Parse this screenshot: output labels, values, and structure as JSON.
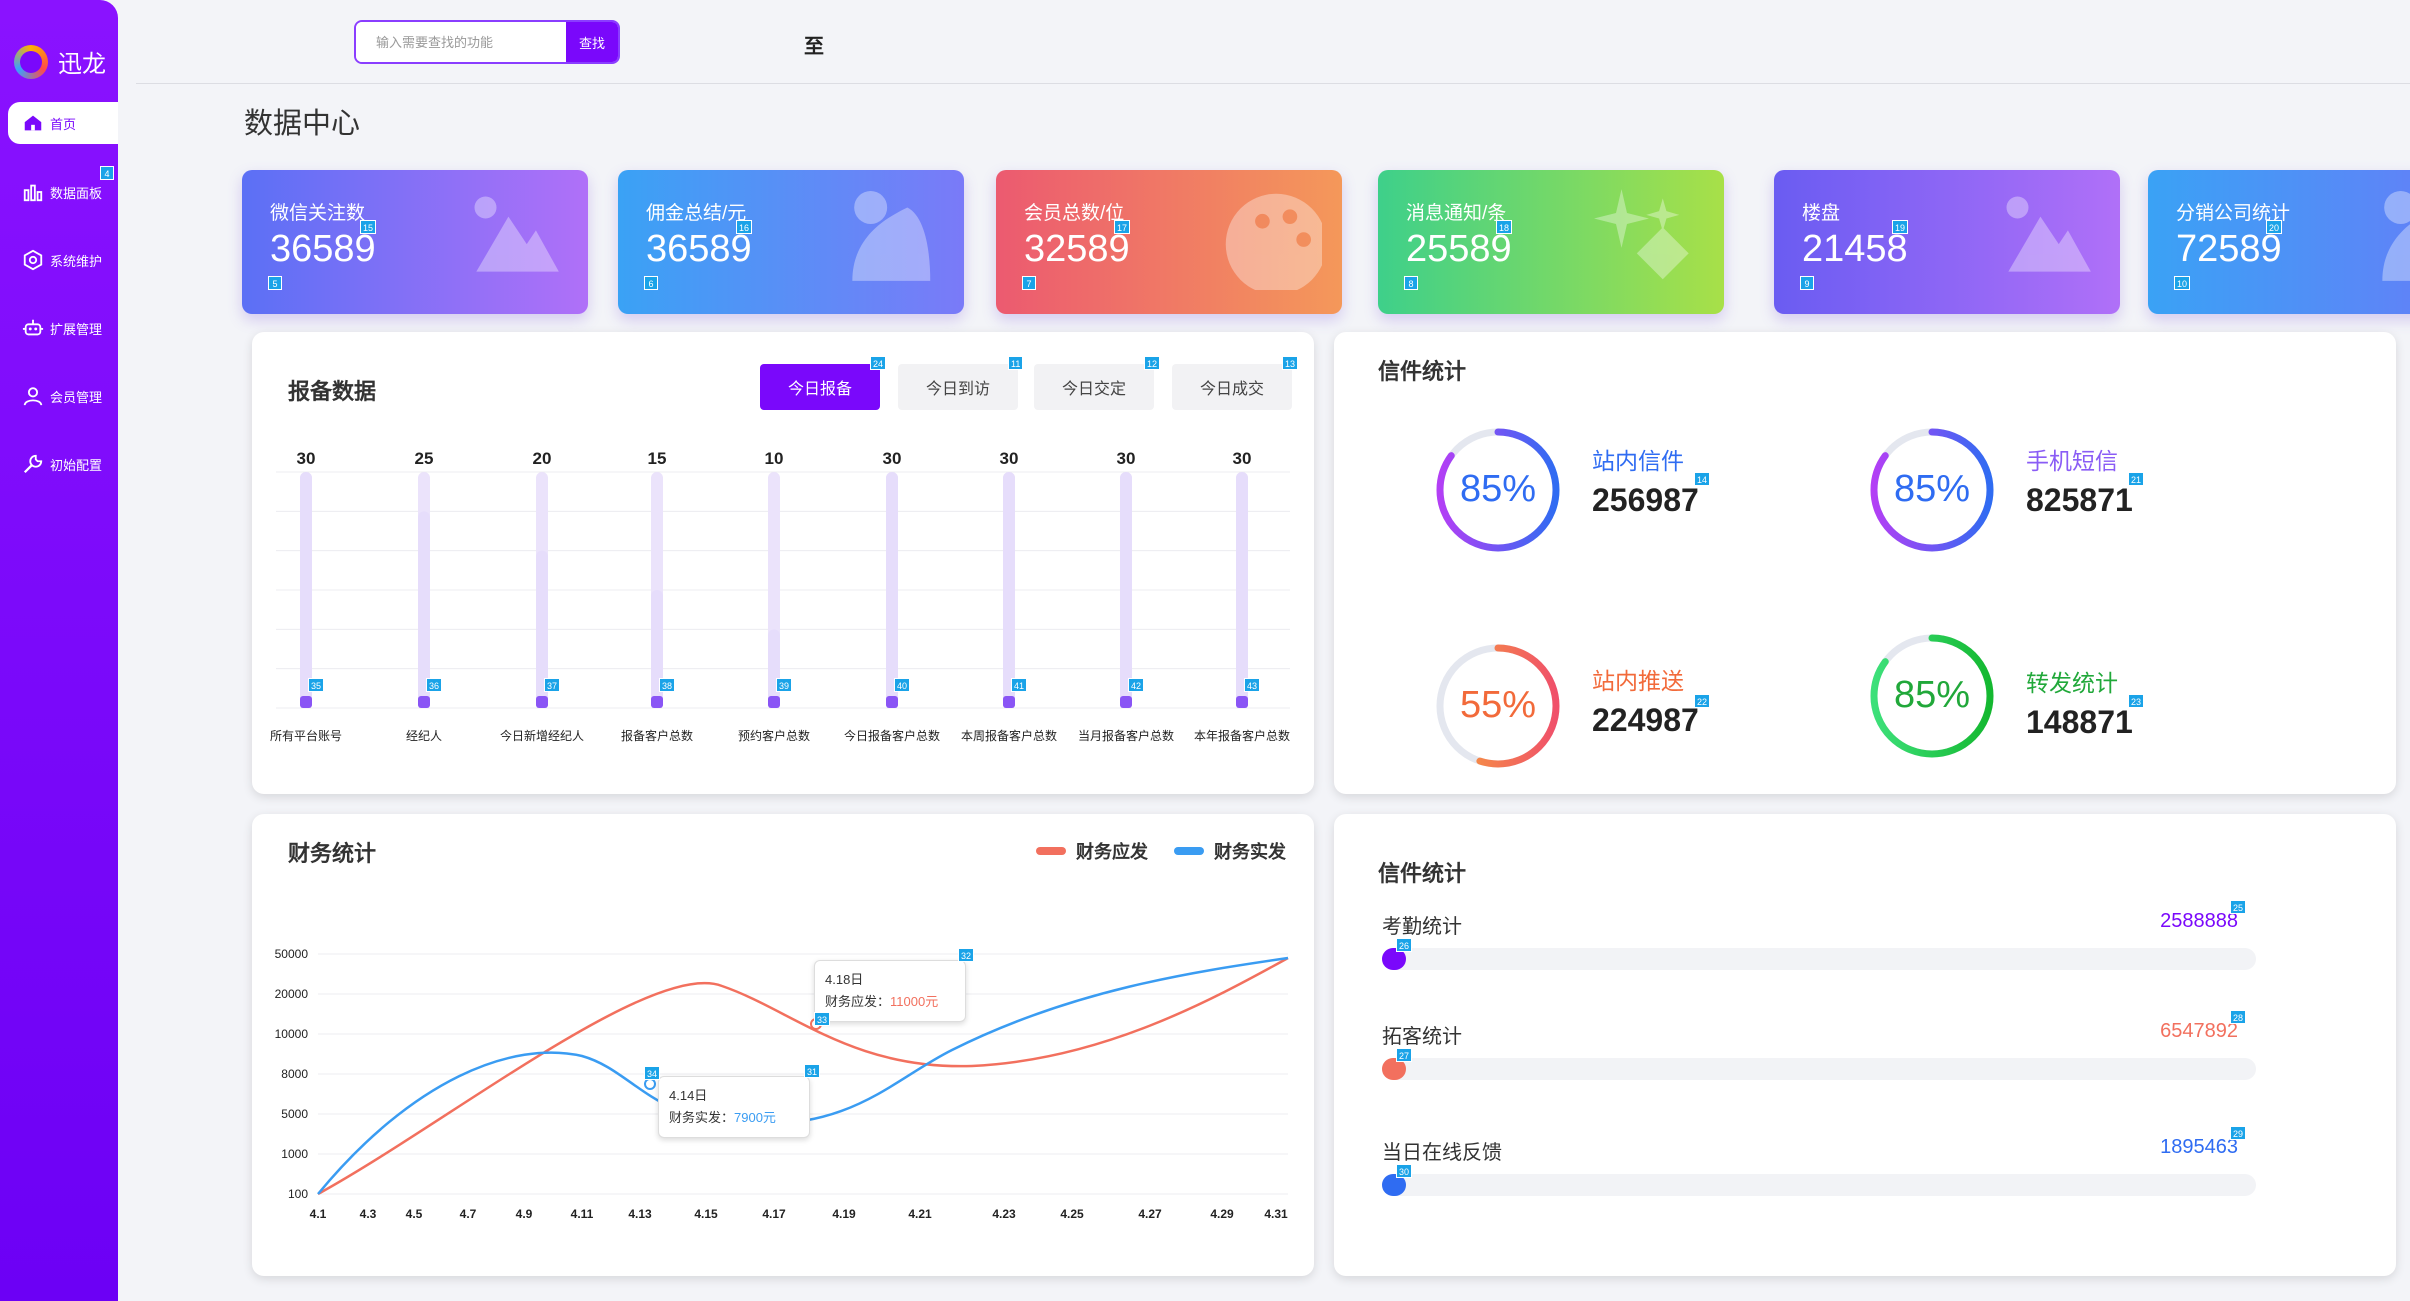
{
  "brand": {
    "name": "迅龙"
  },
  "sidebar": {
    "items": [
      {
        "label": "首页",
        "icon": "home-icon"
      },
      {
        "label": "数据面板",
        "icon": "bar-chart-icon",
        "badge": "4"
      },
      {
        "label": "系统维护",
        "icon": "hexagon-gear-icon"
      },
      {
        "label": "扩展管理",
        "icon": "robot-icon"
      },
      {
        "label": "会员管理",
        "icon": "user-icon"
      },
      {
        "label": "初始配置",
        "icon": "wrench-icon"
      }
    ]
  },
  "topbar": {
    "search_placeholder": "输入需要查找的功能",
    "search_button": "查找",
    "extra_char": "至"
  },
  "page": {
    "title": "数据中心"
  },
  "stats": [
    {
      "label": "微信关注数",
      "value": "36589",
      "badge_a": "15",
      "badge_b": "5",
      "gradient": [
        "#5b70f5",
        "#b070f8"
      ]
    },
    {
      "label": "佣金总结/元",
      "value": "36589",
      "badge_a": "16",
      "badge_b": "6",
      "gradient": [
        "#3aa2f5",
        "#7a7af8"
      ]
    },
    {
      "label": "会员总数/位",
      "value": "32589",
      "badge_a": "17",
      "badge_b": "7",
      "gradient": [
        "#ec5a70",
        "#f4985a"
      ]
    },
    {
      "label": "消息通知/条",
      "value": "25589",
      "badge_a": "18",
      "badge_b": "8",
      "gradient": [
        "#3ed08a",
        "#a8e048"
      ]
    },
    {
      "label": "楼盘",
      "value": "21458",
      "badge_a": "19",
      "badge_b": "9",
      "gradient": [
        "#6a5cf2",
        "#b070f8"
      ]
    },
    {
      "label": "分销公司统计",
      "value": "72589",
      "badge_a": "20",
      "badge_b": "10",
      "gradient": [
        "#3aa2f5",
        "#6a7af8"
      ]
    }
  ],
  "report": {
    "title": "报备数据",
    "tabs": [
      {
        "label": "今日报备",
        "badge": "24",
        "active": true
      },
      {
        "label": "今日到访",
        "badge": "11",
        "active": false
      },
      {
        "label": "今日交定",
        "badge": "12",
        "active": false
      },
      {
        "label": "今日成交",
        "badge": "13",
        "active": false
      }
    ],
    "chart_data": {
      "type": "bar",
      "categories": [
        "所有平台账号",
        "经纪人",
        "今日新增经纪人",
        "报备客户总数",
        "预约客户总数",
        "今日报备客户总数",
        "本周报备客户总数",
        "当月报备客户总数",
        "本年报备客户总数"
      ],
      "values": [
        30,
        25,
        20,
        15,
        10,
        30,
        30,
        30,
        30
      ],
      "badges": [
        "35",
        "36",
        "37",
        "38",
        "39",
        "40",
        "41",
        "42",
        "43"
      ]
    }
  },
  "mail": {
    "title": "信件统计",
    "items": [
      {
        "label": "站内信件",
        "value": "256987",
        "percent": 85,
        "pct_label": "85%",
        "badge": "14",
        "color": "#2f6cf2",
        "ring_from": "#b33ff5",
        "ring_to": "#2f6cf2",
        "pct_color": "#2f6cf2"
      },
      {
        "label": "手机短信",
        "value": "825871",
        "percent": 85,
        "pct_label": "85%",
        "badge": "21",
        "color": "#8a5cf5",
        "ring_from": "#b33ff5",
        "ring_to": "#2f6cf2",
        "pct_color": "#2f6cf2"
      },
      {
        "label": "站内推送",
        "value": "224987",
        "percent": 55,
        "pct_label": "55%",
        "badge": "22",
        "color": "#f26a3a",
        "ring_from": "#f7a23a",
        "ring_to": "#f0506a",
        "pct_color": "#f26a3a"
      },
      {
        "label": "转发统计",
        "value": "148871",
        "percent": 85,
        "pct_label": "85%",
        "badge": "23",
        "color": "#21a83a",
        "ring_from": "#3de07a",
        "ring_to": "#14b830",
        "pct_color": "#21a83a"
      }
    ]
  },
  "finance": {
    "title": "财务统计",
    "chart_data": {
      "type": "line",
      "x": [
        "4.1",
        "4.3",
        "4.5",
        "4.7",
        "4.9",
        "4.11",
        "4.13",
        "4.15",
        "4.17",
        "4.19",
        "4.21",
        "4.23",
        "4.25",
        "4.27",
        "4.29",
        "4.31"
      ],
      "y_ticks": [
        "50000",
        "20000",
        "10000",
        "8000",
        "5000",
        "1000",
        "100"
      ],
      "series": [
        {
          "name": "财务应发",
          "color": "#f2705e"
        },
        {
          "name": "财务实发",
          "color": "#3a9cf2"
        }
      ],
      "tooltips": [
        {
          "date": "4.18日",
          "label": "财务应发：",
          "value": "11000元",
          "color": "#f2705e",
          "badge": "32",
          "badge_point": "33"
        },
        {
          "date": "4.14日",
          "label": "财务实发：",
          "value": "7900元",
          "color": "#3a9cf2",
          "badge": "31",
          "badge_point": "34"
        }
      ]
    }
  },
  "progress": {
    "title": "信件统计",
    "items": [
      {
        "label": "考勤统计",
        "value": "2588888",
        "color": "#7a08fb",
        "badge_value": "25",
        "badge_bar": "26",
        "fraction": 0.028
      },
      {
        "label": "拓客统计",
        "value": "6547892",
        "color": "#f2705e",
        "badge_value": "28",
        "badge_bar": "27",
        "fraction": 0.028
      },
      {
        "label": "当日在线反馈",
        "value": "1895463",
        "color": "#2f6cf2",
        "badge_value": "29",
        "badge_bar": "30",
        "fraction": 0.028
      }
    ]
  }
}
